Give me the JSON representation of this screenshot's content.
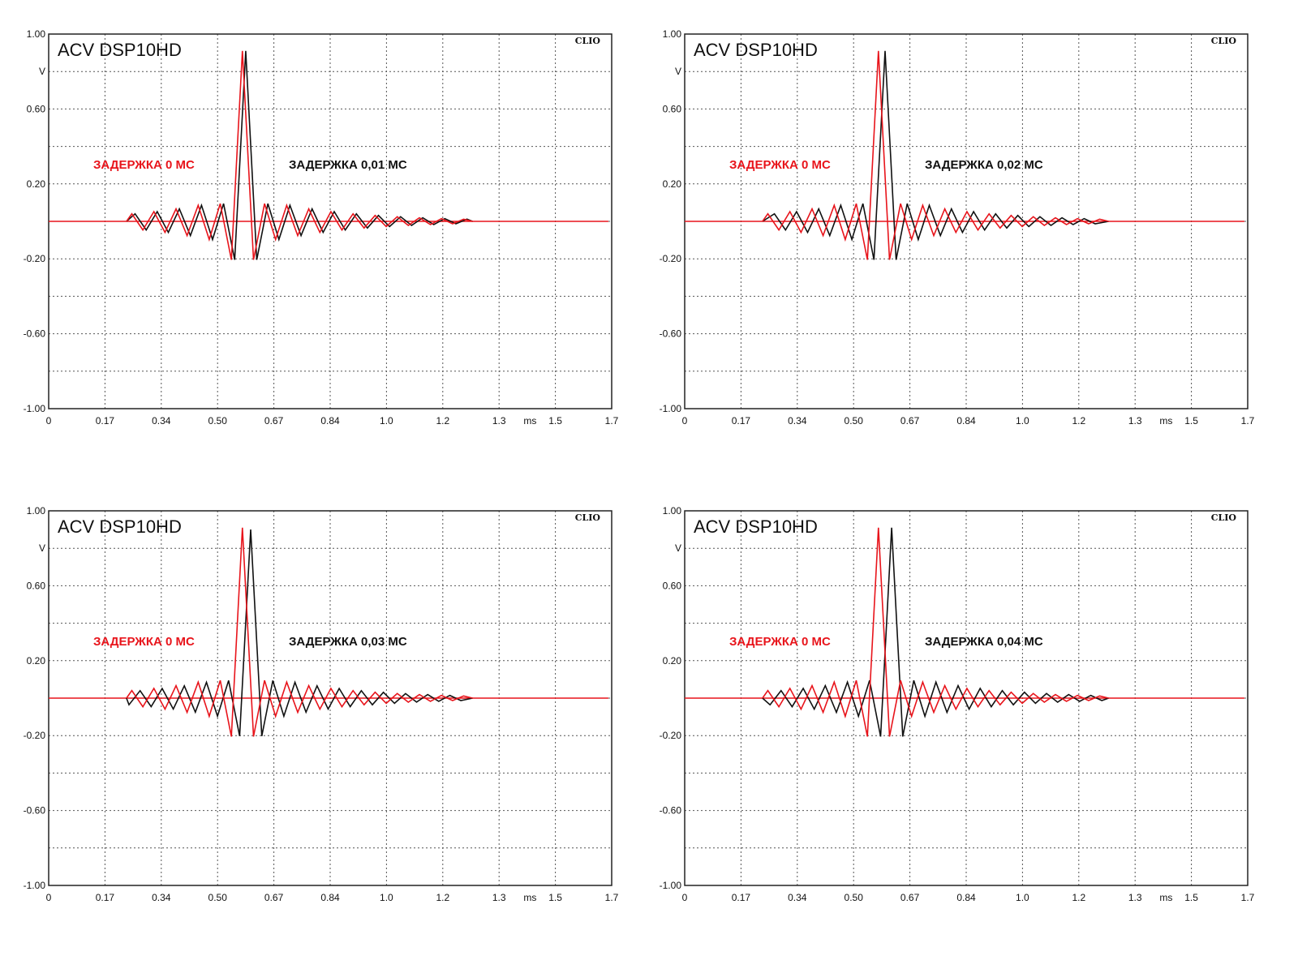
{
  "colors": {
    "reference": "#e8141b",
    "delayed": "#111111",
    "grid": "#555555",
    "frame": "#222222"
  },
  "chart_data": [
    {
      "type": "line",
      "title": "ACV DSP10HD",
      "brand": "CLIO",
      "xlabel": "ms",
      "ylabel": "V",
      "xlim": [
        0,
        1.7
      ],
      "ylim": [
        -1.0,
        1.0
      ],
      "x_ticks": [
        "0",
        "0.17",
        "0.34",
        "0.50",
        "0.67",
        "0.84",
        "1.0",
        "1.2",
        "1.3",
        "1.5",
        "1.7"
      ],
      "y_ticks": [
        "1.00",
        "V",
        "0.60",
        "",
        "0.20",
        "",
        "-0.20",
        "",
        "-0.60",
        "",
        "-1.00"
      ],
      "grid": true,
      "annotations": [
        {
          "text": "ЗАДЕРЖКА 0 МС",
          "series": "reference"
        },
        {
          "text": "ЗАДЕРЖКА 0,01 МС",
          "series": "delayed"
        }
      ],
      "series": [
        {
          "key": "reference",
          "peak_time_ms": 0.585,
          "peak": 0.91
        },
        {
          "key": "delayed",
          "peak_time_ms": 0.595,
          "peak": 0.91
        }
      ]
    },
    {
      "type": "line",
      "title": "ACV DSP10HD",
      "brand": "CLIO",
      "xlabel": "ms",
      "ylabel": "V",
      "xlim": [
        0,
        1.7
      ],
      "ylim": [
        -1.0,
        1.0
      ],
      "x_ticks": [
        "0",
        "0.17",
        "0.34",
        "0.50",
        "0.67",
        "0.84",
        "1.0",
        "1.2",
        "1.3",
        "1.5",
        "1.7"
      ],
      "y_ticks": [
        "1.00",
        "V",
        "0.60",
        "",
        "0.20",
        "",
        "-0.20",
        "",
        "-0.60",
        "",
        "-1.00"
      ],
      "grid": true,
      "annotations": [
        {
          "text": "ЗАДЕРЖКА 0 МС",
          "series": "reference"
        },
        {
          "text": "ЗАДЕРЖКА 0,02 МС",
          "series": "delayed"
        }
      ],
      "series": [
        {
          "key": "reference",
          "peak_time_ms": 0.585,
          "peak": 0.91
        },
        {
          "key": "delayed",
          "peak_time_ms": 0.605,
          "peak": 0.91
        }
      ]
    },
    {
      "type": "line",
      "title": "ACV DSP10HD",
      "brand": "CLIO",
      "xlabel": "ms",
      "ylabel": "V",
      "xlim": [
        0,
        1.7
      ],
      "ylim": [
        -1.0,
        1.0
      ],
      "x_ticks": [
        "0",
        "0.17",
        "0.34",
        "0.50",
        "0.67",
        "0.84",
        "1.0",
        "1.2",
        "1.3",
        "1.5",
        "1.7"
      ],
      "y_ticks": [
        "1.00",
        "V",
        "0.60",
        "",
        "0.20",
        "",
        "-0.20",
        "",
        "-0.60",
        "",
        "-1.00"
      ],
      "grid": true,
      "annotations": [
        {
          "text": "ЗАДЕРЖКА 0 МС",
          "series": "reference"
        },
        {
          "text": "ЗАДЕРЖКА 0,03 МС",
          "series": "delayed"
        }
      ],
      "series": [
        {
          "key": "reference",
          "peak_time_ms": 0.585,
          "peak": 0.91
        },
        {
          "key": "delayed",
          "peak_time_ms": 0.61,
          "peak": 0.9
        }
      ]
    },
    {
      "type": "line",
      "title": "ACV DSP10HD",
      "brand": "CLIO",
      "xlabel": "ms",
      "ylabel": "V",
      "xlim": [
        0,
        1.7
      ],
      "ylim": [
        -1.0,
        1.0
      ],
      "x_ticks": [
        "0",
        "0.17",
        "0.34",
        "0.50",
        "0.67",
        "0.84",
        "1.0",
        "1.2",
        "1.3",
        "1.5",
        "1.7"
      ],
      "y_ticks": [
        "1.00",
        "V",
        "0.60",
        "",
        "0.20",
        "",
        "-0.20",
        "",
        "-0.60",
        "",
        "-1.00"
      ],
      "grid": true,
      "annotations": [
        {
          "text": "ЗАДЕРЖКА 0 МС",
          "series": "reference"
        },
        {
          "text": "ЗАДЕРЖКА 0,04 МС",
          "series": "delayed"
        }
      ],
      "series": [
        {
          "key": "reference",
          "peak_time_ms": 0.585,
          "peak": 0.91
        },
        {
          "key": "delayed",
          "peak_time_ms": 0.625,
          "peak": 0.91
        }
      ]
    }
  ]
}
